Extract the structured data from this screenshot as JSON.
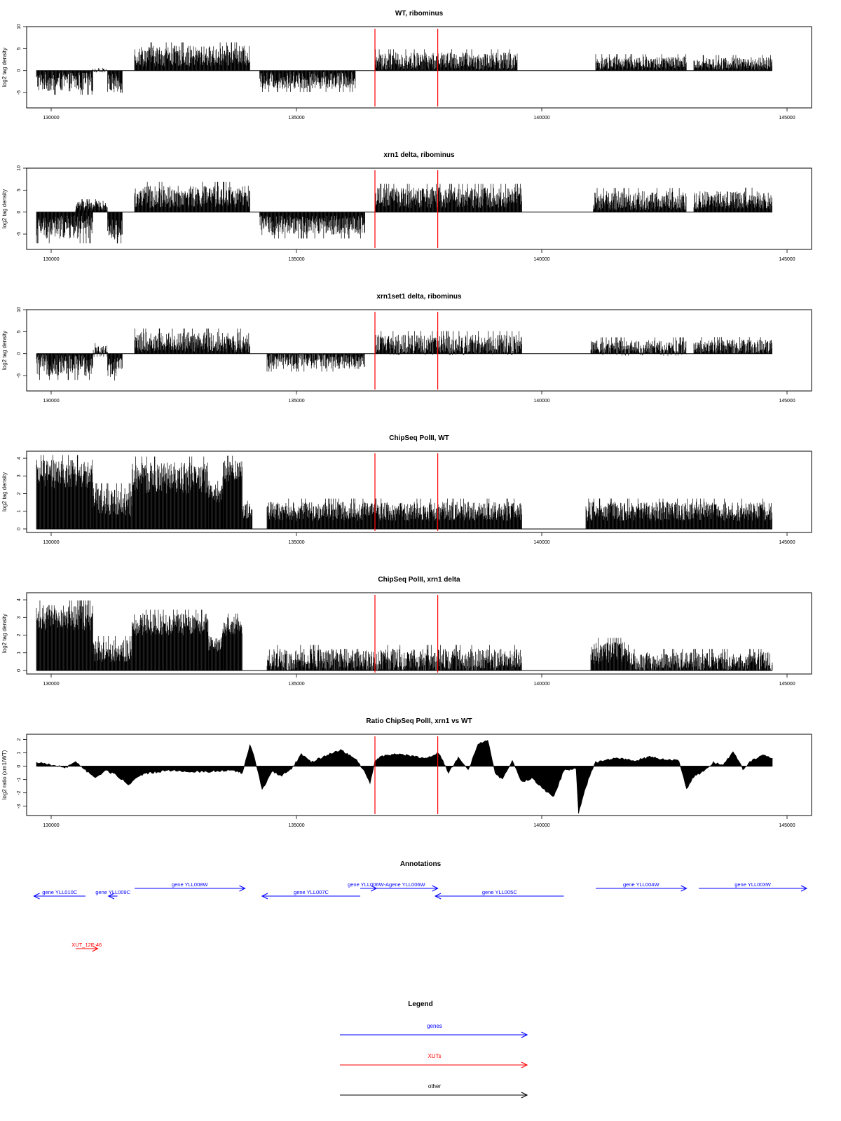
{
  "chart_data": [
    {
      "type": "bar",
      "title": "WT, ribominus",
      "xlabel": "",
      "ylabel": "log2 tag density",
      "xlim": [
        129500,
        145500
      ],
      "ylim": [
        -8.5,
        10
      ],
      "yticks": [
        -5,
        0,
        5,
        10
      ],
      "xticks": [
        130000,
        135000,
        140000,
        145000
      ],
      "marker_positions": [
        136600,
        137880
      ],
      "segments": [
        {
          "from": 129700,
          "to": 130850,
          "center": -2.5,
          "spread": 2.5
        },
        {
          "from": 130850,
          "to": 131150,
          "center": 0,
          "spread": 0.5
        },
        {
          "from": 131150,
          "to": 131450,
          "center": -3.0,
          "spread": 2.5
        },
        {
          "from": 131700,
          "to": 134050,
          "center": 3.3,
          "spread": 2.6
        },
        {
          "from": 134250,
          "to": 136200,
          "center": -2.2,
          "spread": 2.2
        },
        {
          "from": 136600,
          "to": 139500,
          "center": 2.2,
          "spread": 2.2
        },
        {
          "from": 141100,
          "to": 142950,
          "center": 1.7,
          "spread": 1.7
        },
        {
          "from": 143100,
          "to": 144700,
          "center": 1.6,
          "spread": 1.6
        }
      ]
    },
    {
      "type": "bar",
      "title": "xrn1 delta, ribominus",
      "xlabel": "",
      "ylabel": "log2 tag density",
      "xlim": [
        129500,
        145500
      ],
      "ylim": [
        -8.5,
        10
      ],
      "yticks": [
        -5,
        0,
        5,
        10
      ],
      "xticks": [
        130000,
        135000,
        140000,
        145000
      ],
      "marker_positions": [
        136600,
        137880
      ],
      "segments": [
        {
          "from": 129700,
          "to": 130850,
          "center": -3.5,
          "spread": 3.0
        },
        {
          "from": 130500,
          "to": 131150,
          "center": 1.5,
          "spread": 1.2
        },
        {
          "from": 131150,
          "to": 131450,
          "center": -4.0,
          "spread": 2.6
        },
        {
          "from": 131700,
          "to": 134050,
          "center": 3.5,
          "spread": 2.8
        },
        {
          "from": 134250,
          "to": 136400,
          "center": -3.0,
          "spread": 2.5
        },
        {
          "from": 136600,
          "to": 139600,
          "center": 3.3,
          "spread": 2.6
        },
        {
          "from": 141050,
          "to": 142950,
          "center": 2.6,
          "spread": 2.4
        },
        {
          "from": 143100,
          "to": 144700,
          "center": 2.8,
          "spread": 2.3
        }
      ]
    },
    {
      "type": "bar",
      "title": "xrn1set1 delta, ribominus",
      "xlabel": "",
      "ylabel": "log2 tag density",
      "xlim": [
        129500,
        145500
      ],
      "ylim": [
        -8.5,
        10
      ],
      "yticks": [
        -5,
        0,
        5,
        10
      ],
      "xticks": [
        130000,
        135000,
        140000,
        145000
      ],
      "marker_positions": [
        136600,
        137880
      ],
      "segments": [
        {
          "from": 129700,
          "to": 130850,
          "center": -2.6,
          "spread": 2.8
        },
        {
          "from": 130850,
          "to": 131150,
          "center": 0.6,
          "spread": 1.5
        },
        {
          "from": 131150,
          "to": 131450,
          "center": -3.0,
          "spread": 2.6
        },
        {
          "from": 131700,
          "to": 134050,
          "center": 2.6,
          "spread": 2.6
        },
        {
          "from": 134400,
          "to": 136400,
          "center": -1.7,
          "spread": 2.0
        },
        {
          "from": 136600,
          "to": 139600,
          "center": 2.0,
          "spread": 2.6
        },
        {
          "from": 141000,
          "to": 142950,
          "center": 1.3,
          "spread": 2.0
        },
        {
          "from": 143100,
          "to": 144700,
          "center": 1.6,
          "spread": 1.8
        }
      ]
    },
    {
      "type": "bar",
      "title": "ChipSeq PolII, WT",
      "xlabel": "",
      "ylabel": "log2 tag density",
      "xlim": [
        129500,
        145500
      ],
      "ylim": [
        -0.2,
        4.4
      ],
      "yticks": [
        0,
        1,
        2,
        3,
        4
      ],
      "xticks": [
        130000,
        135000,
        140000,
        145000
      ],
      "marker_positions": [
        136600,
        137880
      ],
      "segments": [
        {
          "from": 129700,
          "to": 130850,
          "center": 3.1,
          "spread": 0.9
        },
        {
          "from": 130850,
          "to": 131650,
          "center": 1.5,
          "spread": 0.9
        },
        {
          "from": 131650,
          "to": 133200,
          "center": 2.9,
          "spread": 1.0
        },
        {
          "from": 133200,
          "to": 133500,
          "center": 2.0,
          "spread": 0.6
        },
        {
          "from": 133500,
          "to": 133900,
          "center": 3.3,
          "spread": 0.7
        },
        {
          "from": 133900,
          "to": 134100,
          "center": 1.0,
          "spread": 0.5
        },
        {
          "from": 134400,
          "to": 139600,
          "center": 1.0,
          "spread": 0.6
        },
        {
          "from": 140900,
          "to": 144700,
          "center": 1.0,
          "spread": 0.6
        }
      ]
    },
    {
      "type": "bar",
      "title": "ChipSeq PolII, xrn1 delta",
      "xlabel": "",
      "ylabel": "log2 tag density",
      "xlim": [
        129500,
        145500
      ],
      "ylim": [
        -0.2,
        4.4
      ],
      "yticks": [
        0,
        1,
        2,
        3,
        4
      ],
      "xticks": [
        130000,
        135000,
        140000,
        145000
      ],
      "marker_positions": [
        136600,
        137880
      ],
      "segments": [
        {
          "from": 129700,
          "to": 130850,
          "center": 3.0,
          "spread": 0.8
        },
        {
          "from": 130850,
          "to": 131650,
          "center": 1.1,
          "spread": 0.7
        },
        {
          "from": 131650,
          "to": 133200,
          "center": 2.6,
          "spread": 0.7
        },
        {
          "from": 133200,
          "to": 133500,
          "center": 1.5,
          "spread": 0.5
        },
        {
          "from": 133500,
          "to": 133900,
          "center": 2.5,
          "spread": 0.6
        },
        {
          "from": 134400,
          "to": 139600,
          "center": 0.6,
          "spread": 0.7
        },
        {
          "from": 141000,
          "to": 141800,
          "center": 1.0,
          "spread": 0.7
        },
        {
          "from": 141800,
          "to": 144700,
          "center": 0.5,
          "spread": 0.6
        }
      ]
    },
    {
      "type": "area",
      "title": "Ratio ChipSeq PolII, xrn1 vs WT",
      "xlabel": "",
      "ylabel": "log2 ratio (xrn1/WT)",
      "xlim": [
        129500,
        145500
      ],
      "ylim": [
        -3.7,
        2.4
      ],
      "yticks": [
        -3,
        -2,
        -1,
        0,
        1,
        2
      ],
      "xticks": [
        130000,
        135000,
        140000,
        145000
      ],
      "marker_positions": [
        136600,
        137880
      ],
      "x": [
        129700,
        130000,
        130300,
        130500,
        130700,
        130900,
        131100,
        131300,
        131600,
        131800,
        132000,
        132400,
        132800,
        133200,
        133600,
        133900,
        134050,
        134150,
        134300,
        134500,
        134700,
        134900,
        135100,
        135300,
        135600,
        135900,
        136200,
        136400,
        136500,
        136600,
        136700,
        137000,
        137300,
        137600,
        137900,
        138100,
        138300,
        138500,
        138700,
        138900,
        139050,
        139200,
        139400,
        139600,
        139800,
        140000,
        140250,
        140450,
        140700,
        140750,
        140850,
        140950,
        141100,
        141300,
        141600,
        141900,
        142200,
        142500,
        142800,
        142950,
        143100,
        143300,
        143500,
        143700,
        143900,
        144100,
        144300,
        144500,
        144700
      ],
      "y": [
        0.3,
        0.1,
        -0.1,
        0.4,
        -0.3,
        -0.9,
        -0.3,
        -0.6,
        -1.4,
        -0.7,
        -0.5,
        -0.3,
        -0.4,
        -0.4,
        -0.3,
        -0.5,
        1.6,
        0.6,
        -1.8,
        -0.4,
        -0.7,
        -0.2,
        0.9,
        0.3,
        0.8,
        1.2,
        0.6,
        -0.5,
        -1.3,
        0.4,
        0.7,
        0.9,
        0.8,
        0.6,
        1.0,
        -0.5,
        0.7,
        -0.3,
        1.6,
        2.0,
        -0.5,
        -1.0,
        0.4,
        -1.2,
        -0.9,
        -1.6,
        -2.3,
        -0.3,
        -0.2,
        -3.5,
        -2.2,
        -1.0,
        0.3,
        0.5,
        0.6,
        0.4,
        0.7,
        0.5,
        0.4,
        -1.7,
        -0.8,
        -0.4,
        0.3,
        0.1,
        1.1,
        -0.2,
        0.5,
        0.8,
        0.6
      ]
    }
  ],
  "annotations": {
    "title": "Annotations",
    "colors": {
      "gene": "#0000ff",
      "xut": "#ff0000",
      "other": "#000000"
    },
    "genes": [
      {
        "label": "gene YLL010C",
        "start": 130700,
        "end": 129650,
        "row": 1
      },
      {
        "label": "gene YLL009C",
        "start": 131350,
        "end": 131170,
        "row": 1
      },
      {
        "label": "gene YLL008W",
        "start": 131700,
        "end": 133950,
        "row": 0
      },
      {
        "label": "gene YLL007C",
        "start": 136300,
        "end": 134300,
        "row": 1
      },
      {
        "label": "gene YLL006W-A",
        "start": 136300,
        "end": 136630,
        "row": 0
      },
      {
        "label": "gene YLL006W",
        "start": 136630,
        "end": 137880,
        "row": 0
      },
      {
        "label": "gene YLL005C",
        "start": 140450,
        "end": 137830,
        "row": 1
      },
      {
        "label": "gene YLL004W",
        "start": 141100,
        "end": 142950,
        "row": 0
      },
      {
        "label": "gene YLL003W",
        "start": 143200,
        "end": 145400,
        "row": 0
      }
    ],
    "xuts": [
      {
        "label": "XUT_12F-46",
        "start": 130500,
        "end": 130950
      }
    ]
  },
  "legend": {
    "title": "Legend",
    "items": [
      {
        "label": "genes",
        "color": "#0000ff"
      },
      {
        "label": "XUTs",
        "color": "#ff0000"
      },
      {
        "label": "other",
        "color": "#000000"
      }
    ]
  }
}
